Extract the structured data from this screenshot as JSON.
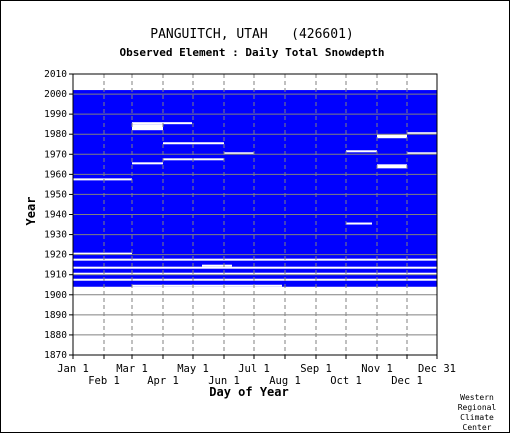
{
  "chart_data": {
    "type": "heatmap",
    "title": "PANGUITCH, UTAH   (426601)",
    "subtitle": "Observed Element : Daily Total Snowdepth",
    "xlabel": "Day of Year",
    "ylabel": "Year",
    "yticks": [
      1870,
      1880,
      1890,
      1900,
      1910,
      1920,
      1930,
      1940,
      1950,
      1960,
      1970,
      1980,
      1990,
      2000,
      2010
    ],
    "ylim": [
      1870,
      2010
    ],
    "xlim": [
      1,
      365
    ],
    "xticks_top_row": [
      {
        "label": "Jan 1",
        "day": 1
      },
      {
        "label": "Mar 1",
        "day": 60
      },
      {
        "label": "May 1",
        "day": 121
      },
      {
        "label": "Jul 1",
        "day": 182
      },
      {
        "label": "Sep 1",
        "day": 244
      },
      {
        "label": "Nov 1",
        "day": 305
      },
      {
        "label": "Dec 31",
        "day": 365
      }
    ],
    "xticks_bottom_row": [
      {
        "label": "Feb 1",
        "day": 32
      },
      {
        "label": "Apr 1",
        "day": 91
      },
      {
        "label": "Jun 1",
        "day": 152
      },
      {
        "label": "Aug 1",
        "day": 213
      },
      {
        "label": "Oct 1",
        "day": 274
      },
      {
        "label": "Dec 1",
        "day": 335
      }
    ],
    "data_color": "#0000ff",
    "grid": true,
    "coverage": {
      "record_start_year": 1904,
      "record_end_year": 2002,
      "main_block": [
        {
          "year_start": 1904,
          "year_end": 2002,
          "day_start": 1,
          "day_end": 365
        }
      ],
      "gaps": [
        {
          "year_start": 1985,
          "year_end": 1986,
          "day_start": 60,
          "day_end": 120
        },
        {
          "year_start": 1982,
          "year_end": 1985,
          "day_start": 60,
          "day_end": 91
        },
        {
          "year_start": 1965,
          "year_end": 1966,
          "day_start": 60,
          "day_end": 91
        },
        {
          "year_start": 1975,
          "year_end": 1976,
          "day_start": 91,
          "day_end": 152
        },
        {
          "year_start": 1970,
          "year_end": 1971,
          "day_start": 152,
          "day_end": 182
        },
        {
          "year_start": 1967,
          "year_end": 1968,
          "day_start": 91,
          "day_end": 152
        },
        {
          "year_start": 1971,
          "year_end": 1972,
          "day_start": 274,
          "day_end": 305
        },
        {
          "year_start": 1978,
          "year_end": 1980,
          "day_start": 305,
          "day_end": 335
        },
        {
          "year_start": 1980,
          "year_end": 1981,
          "day_start": 335,
          "day_end": 365
        },
        {
          "year_start": 1970,
          "year_end": 1971,
          "day_start": 335,
          "day_end": 365
        },
        {
          "year_start": 1963,
          "year_end": 1965,
          "day_start": 305,
          "day_end": 335
        },
        {
          "year_start": 1957,
          "year_end": 1958,
          "day_start": 1,
          "day_end": 60
        },
        {
          "year_start": 1935,
          "year_end": 1936,
          "day_start": 274,
          "day_end": 300
        },
        {
          "year_start": 1920,
          "year_end": 1921,
          "day_start": 1,
          "day_end": 60
        },
        {
          "year_start": 1917,
          "year_end": 1918,
          "day_start": 1,
          "day_end": 365
        },
        {
          "year_start": 1914,
          "year_end": 1915,
          "day_start": 130,
          "day_end": 160
        },
        {
          "year_start": 1913,
          "year_end": 1914,
          "day_start": 1,
          "day_end": 365
        },
        {
          "year_start": 1910,
          "year_end": 1911,
          "day_start": 1,
          "day_end": 365
        },
        {
          "year_start": 1907,
          "year_end": 1908,
          "day_start": 1,
          "day_end": 365
        },
        {
          "year_start": 1904,
          "year_end": 1905,
          "day_start": 60,
          "day_end": 210
        }
      ]
    }
  },
  "credit": [
    "Western",
    "Regional",
    "Climate",
    "Center"
  ]
}
